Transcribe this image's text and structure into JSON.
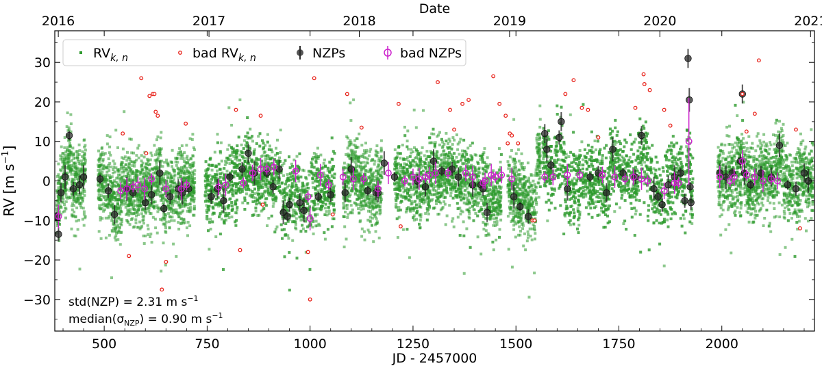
{
  "chart_data": {
    "type": "scatter",
    "title": "",
    "top_axis_label": "Date",
    "xlabel": "JD - 2457000",
    "ylabel_main": "RV [m s",
    "ylabel_sup": "−1",
    "ylabel_close": "]",
    "xlim": [
      380,
      2225
    ],
    "ylim": [
      -38,
      38
    ],
    "x_ticks": [
      500,
      750,
      1000,
      1250,
      1500,
      1750,
      2000
    ],
    "x_tick_labels": [
      "500",
      "750",
      "1000",
      "1250",
      "1500",
      "1750",
      "2000"
    ],
    "y_ticks": [
      -30,
      -20,
      -10,
      0,
      10,
      20,
      30
    ],
    "y_tick_labels": [
      "−30",
      "−20",
      "−10",
      "0",
      "10",
      "20",
      "30"
    ],
    "top_ticks": [
      {
        "jd": 388.5,
        "label": "2016"
      },
      {
        "jd": 754.5,
        "label": "2017"
      },
      {
        "jd": 1119.5,
        "label": "2018"
      },
      {
        "jd": 1484.5,
        "label": "2019"
      },
      {
        "jd": 1849.5,
        "label": "2020"
      },
      {
        "jd": 2215.5,
        "label": "2021"
      }
    ],
    "legend": {
      "position": "upper-left",
      "entries": [
        {
          "label": "RV",
          "sub": "k, n",
          "series": "rv"
        },
        {
          "label": "bad RV",
          "sub": "k, n",
          "series": "bad_rv"
        },
        {
          "label": "NZPs",
          "sub": "",
          "series": "nzp"
        },
        {
          "label": "bad NZPs",
          "sub": "",
          "series": "bad_nzp"
        }
      ]
    },
    "annotations": [
      {
        "prefix": "std(NZP) = 2.31 m s",
        "sup": "−1",
        "sub": "",
        "suffix": ""
      },
      {
        "prefix": "median(σ",
        "sub": "NZP",
        "suffix": ") = 0.90 m s",
        "sup": "−1"
      }
    ],
    "colors": {
      "rv": "#2e9a2e",
      "bad_rv": "#e8231b",
      "nzp": "#2a2a2a",
      "bad_nzp": "#cc22cc"
    },
    "observing_seasons_jd": [
      [
        384,
        455
      ],
      [
        485,
        720
      ],
      [
        745,
        1060
      ],
      [
        1080,
        1175
      ],
      [
        1205,
        1465
      ],
      [
        1480,
        1560
      ],
      [
        1565,
        1930
      ],
      [
        1990,
        2222
      ]
    ],
    "rv_scatter_sigma": 4.5,
    "series": [
      {
        "name": "bad RV_{k,n}",
        "x": [
          545,
          560,
          590,
          602,
          610,
          618,
          622,
          625,
          630,
          640,
          650,
          698,
          820,
          830,
          880,
          885,
          995,
          1000,
          1010,
          1055,
          1090,
          1125,
          1215,
          1220,
          1310,
          1340,
          1350,
          1370,
          1385,
          1445,
          1460,
          1475,
          1480,
          1485,
          1490,
          1505,
          1540,
          1545,
          1620,
          1640,
          1660,
          1675,
          1700,
          1790,
          1810,
          1812,
          1825,
          1860,
          1875,
          2050,
          2060,
          2080,
          2090,
          2180,
          2190
        ],
        "y": [
          12,
          -19,
          26,
          7,
          21.5,
          22,
          22,
          17.5,
          16.5,
          -27.5,
          -20.5,
          14.5,
          18,
          -17.5,
          16.5,
          -6,
          -18,
          -30,
          26,
          -8.5,
          22,
          13.5,
          19.5,
          -11.5,
          25,
          18,
          13,
          19.5,
          20.5,
          26.5,
          19.5,
          16.5,
          9.5,
          12,
          11.5,
          9.5,
          -10,
          -10,
          22,
          25.5,
          18.5,
          18,
          11,
          18.5,
          27,
          24.5,
          23,
          18,
          14,
          22,
          12.5,
          17,
          30.5,
          13,
          -12
        ]
      },
      {
        "name": "NZPs",
        "x": [
          384,
          389,
          395,
          405,
          415,
          425,
          440,
          450,
          490,
          510,
          525,
          555,
          570,
          600,
          615,
          635,
          645,
          660,
          680,
          690,
          705,
          760,
          775,
          790,
          805,
          835,
          850,
          865,
          895,
          910,
          925,
          935,
          945,
          950,
          975,
          985,
          1020,
          1050,
          1085,
          1100,
          1140,
          1160,
          1165,
          1180,
          1205,
          1260,
          1280,
          1300,
          1320,
          1345,
          1360,
          1395,
          1415,
          1420,
          1430,
          1495,
          1510,
          1530,
          1570,
          1575,
          1585,
          1605,
          1610,
          1625,
          1680,
          1700,
          1720,
          1735,
          1760,
          1790,
          1805,
          1835,
          1845,
          1855,
          1870,
          1885,
          1900,
          1910,
          1918,
          1921,
          1923,
          1925,
          1995,
          2010,
          2025,
          2045,
          2050,
          2055,
          2070,
          2095,
          2120,
          2140,
          2160,
          2180,
          2200,
          2210
        ],
        "y": [
          -9,
          -13.5,
          -3,
          1,
          11.5,
          -2,
          -1,
          1,
          0.5,
          -2.5,
          -8.5,
          -2,
          -3,
          -5.5,
          -3.5,
          2,
          -7,
          -4,
          -2,
          -3,
          -2,
          -4,
          -2,
          -5,
          1,
          3,
          7,
          2,
          2,
          -1.5,
          3,
          -8,
          -9,
          -6,
          -5.5,
          -7.5,
          -4,
          -3.5,
          -3,
          3,
          -2.5,
          -3,
          -3,
          4.5,
          1,
          0,
          -1.5,
          5,
          2.5,
          3,
          1,
          -1,
          -1,
          -2,
          -8,
          -4,
          -6.5,
          -9,
          12,
          8,
          4,
          11,
          15,
          -2,
          1,
          2,
          -3,
          8,
          2,
          1,
          11.5,
          -2,
          -4,
          -6,
          -1,
          1,
          2,
          -5,
          31,
          20.5,
          -1.5,
          -5.5,
          2,
          1,
          2,
          5,
          22,
          2,
          -1,
          2,
          1,
          9,
          -1,
          -2,
          2,
          0
        ]
      },
      {
        "name": "bad NZPs",
        "x": [
          389,
          540,
          555,
          570,
          582,
          598,
          615,
          650,
          687,
          700,
          778,
          795,
          838,
          860,
          880,
          895,
          912,
          965,
          995,
          1000,
          1025,
          1045,
          1080,
          1105,
          1130,
          1165,
          1190,
          1230,
          1250,
          1265,
          1280,
          1290,
          1305,
          1335,
          1378,
          1395,
          1420,
          1425,
          1440,
          1450,
          1465,
          1490,
          1570,
          1590,
          1625,
          1655,
          1710,
          1740,
          1765,
          1785,
          1805,
          1820,
          1860,
          1885,
          1895,
          1920,
          1995,
          2020,
          2030,
          2050,
          2060,
          2080,
          2100,
          2120,
          2135
        ],
        "y": [
          -9,
          -2.5,
          -2,
          -1.5,
          -1,
          -2,
          0.5,
          -2,
          -2,
          -1,
          -1.5,
          -1,
          -0.5,
          2,
          3,
          3,
          3.5,
          2.5,
          -4,
          -9.5,
          1.5,
          -1,
          1,
          0.5,
          0.5,
          -2,
          2,
          0,
          1,
          0.5,
          1,
          1.5,
          2,
          2,
          2,
          1,
          -0.5,
          0,
          1.5,
          1,
          1.5,
          0.5,
          1,
          1,
          1.5,
          1.5,
          1.5,
          1,
          0.5,
          1,
          0.5,
          0,
          -2.5,
          -0.5,
          -0.5,
          10,
          1,
          0,
          1,
          5,
          1.5,
          1,
          0,
          0.5,
          0
        ]
      }
    ]
  }
}
